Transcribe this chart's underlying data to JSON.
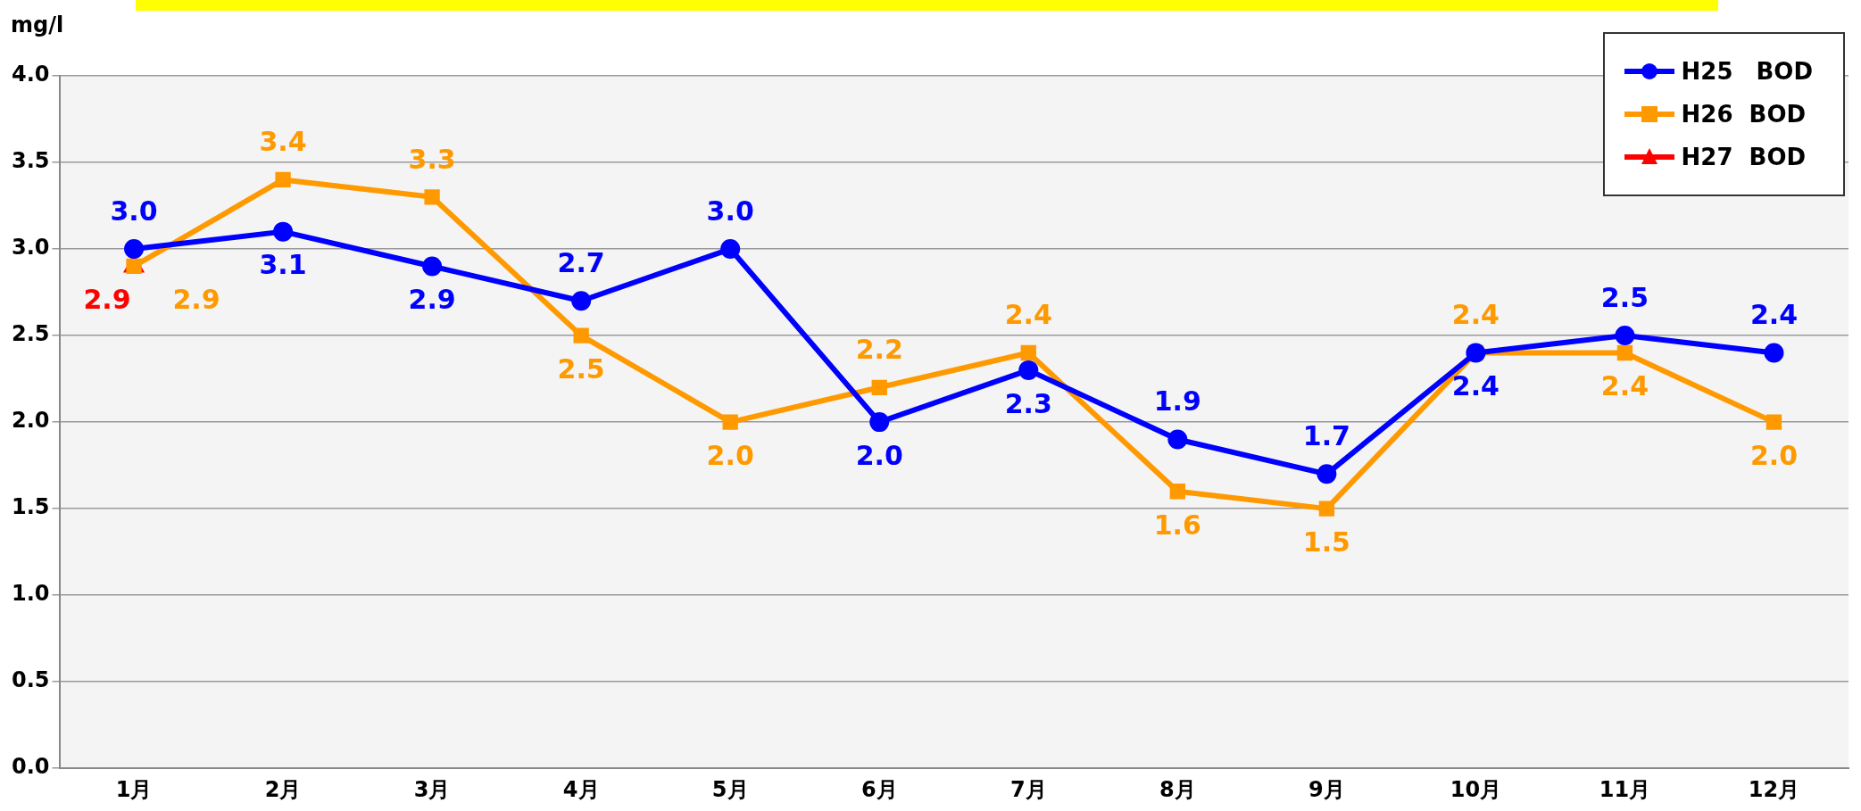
{
  "chart_data": {
    "type": "line",
    "ylabel": "mg/l",
    "categories": [
      "1月",
      "2月",
      "3月",
      "4月",
      "5月",
      "6月",
      "7月",
      "8月",
      "9月",
      "10月",
      "11月",
      "12月"
    ],
    "series": [
      {
        "name": "H25　BOD",
        "color": "#0000ff",
        "marker": "circle",
        "values": [
          3.0,
          3.1,
          2.9,
          2.7,
          3.0,
          2.0,
          2.3,
          1.9,
          1.7,
          2.4,
          2.5,
          2.4
        ],
        "value_labels": [
          "3.0",
          "3.1",
          "2.9",
          "2.7",
          "3.0",
          "2.0",
          "2.3",
          "1.9",
          "1.7",
          "2.4",
          "2.5",
          "2.4"
        ]
      },
      {
        "name": "H26  BOD",
        "color": "#ff9900",
        "marker": "square",
        "values": [
          2.9,
          3.4,
          3.3,
          2.5,
          2.0,
          2.2,
          2.4,
          1.6,
          1.5,
          2.4,
          2.4,
          2.0
        ],
        "value_labels": [
          "2.9",
          "3.4",
          "3.3",
          "2.5",
          "2.0",
          "2.2",
          "2.4",
          "1.6",
          "1.5",
          "2.4",
          "2.4",
          "2.0"
        ]
      },
      {
        "name": "H27  BOD",
        "color": "#ff0000",
        "marker": "triangle",
        "values": [
          2.9,
          null,
          null,
          null,
          null,
          null,
          null,
          null,
          null,
          null,
          null,
          null
        ],
        "value_labels": [
          "2.9",
          null,
          null,
          null,
          null,
          null,
          null,
          null,
          null,
          null,
          null,
          null
        ]
      }
    ],
    "ylim": [
      0,
      4
    ],
    "yticks": [
      {
        "value": 0,
        "label": "0.0"
      },
      {
        "value": 0.5,
        "label": "0.5"
      },
      {
        "value": 1,
        "label": "1.0"
      },
      {
        "value": 1.5,
        "label": "1.5"
      },
      {
        "value": 2,
        "label": "2.0"
      },
      {
        "value": 2.5,
        "label": "2.5"
      },
      {
        "value": 3,
        "label": "3.0"
      },
      {
        "value": 3.5,
        "label": "3.5"
      },
      {
        "value": 4,
        "label": "4.0"
      }
    ],
    "grid": "y",
    "legend": "top right",
    "line_style": "solid"
  }
}
